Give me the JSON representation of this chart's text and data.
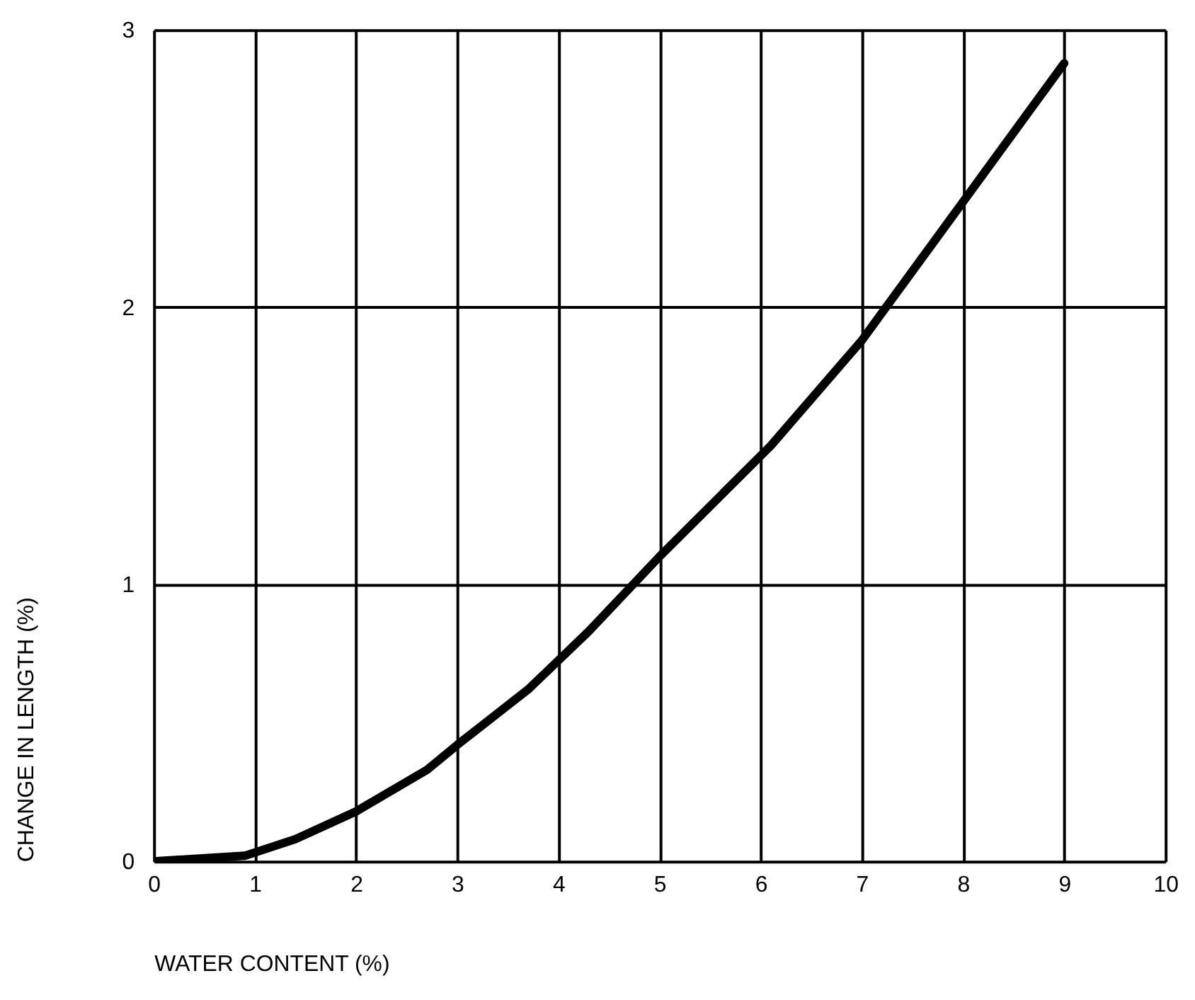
{
  "chart_data": {
    "type": "line",
    "xlabel": "WATER CONTENT (%)",
    "ylabel": "CHANGE IN LENGTH (%)",
    "x": [
      0,
      0.9,
      1.4,
      2,
      2.7,
      3,
      3.7,
      4.3,
      5,
      6.1,
      7,
      8,
      9
    ],
    "series": [
      {
        "color": "#000000",
        "values": [
          0,
          0.02,
          0.08,
          0.18,
          0.33,
          0.42,
          0.62,
          0.83,
          1.1,
          1.5,
          1.88,
          2.38,
          2.88
        ]
      }
    ],
    "xlim": [
      0,
      10
    ],
    "ylim": [
      0,
      3
    ],
    "xticks": [
      0,
      1,
      2,
      3,
      4,
      5,
      6,
      7,
      8,
      9,
      10
    ],
    "yticks": [
      0,
      1,
      2,
      3
    ],
    "grid": true,
    "line_style": "solid",
    "marker": "none"
  }
}
